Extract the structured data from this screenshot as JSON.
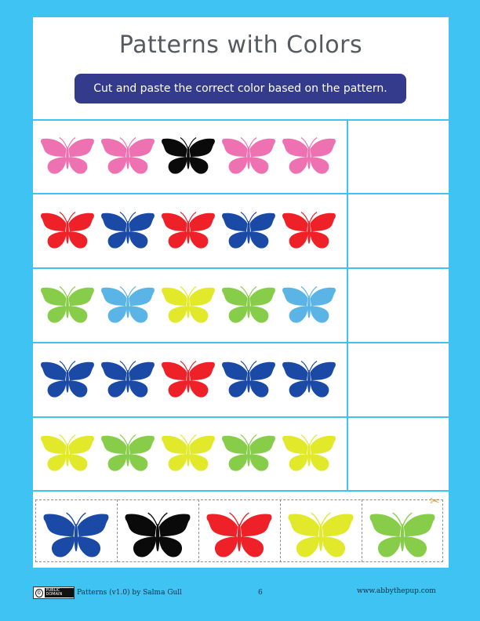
{
  "title": "Patterns with Colors",
  "instruction": "Cut and paste the correct color based on the pattern.",
  "colors": {
    "pink": "#ee72b2",
    "black": "#0a0a0a",
    "red": "#ee2128",
    "blue": "#1a4aa6",
    "lime": "#88cd4a",
    "sky": "#5ab4e5",
    "yellow": "#e1e92a",
    "background": "#3ec3f2",
    "banner": "#343b8d"
  },
  "pattern_rows": [
    [
      "pink",
      "pink",
      "black",
      "pink",
      "pink"
    ],
    [
      "red",
      "blue",
      "red",
      "blue",
      "red"
    ],
    [
      "lime",
      "sky",
      "yellow",
      "lime",
      "sky"
    ],
    [
      "blue",
      "blue",
      "red",
      "blue",
      "blue"
    ],
    [
      "yellow",
      "lime",
      "yellow",
      "lime",
      "yellow"
    ]
  ],
  "cut_out_options": [
    "blue",
    "black",
    "red",
    "yellow",
    "lime"
  ],
  "scissors_icon": "scissors-icon",
  "footer": {
    "badge_label": "PUBLIC DOMAIN",
    "badge_symbol": "0",
    "credit": "Patterns (v1.0) by Salma Gull",
    "page_number": "6",
    "website": "www.abbythepup.com"
  }
}
